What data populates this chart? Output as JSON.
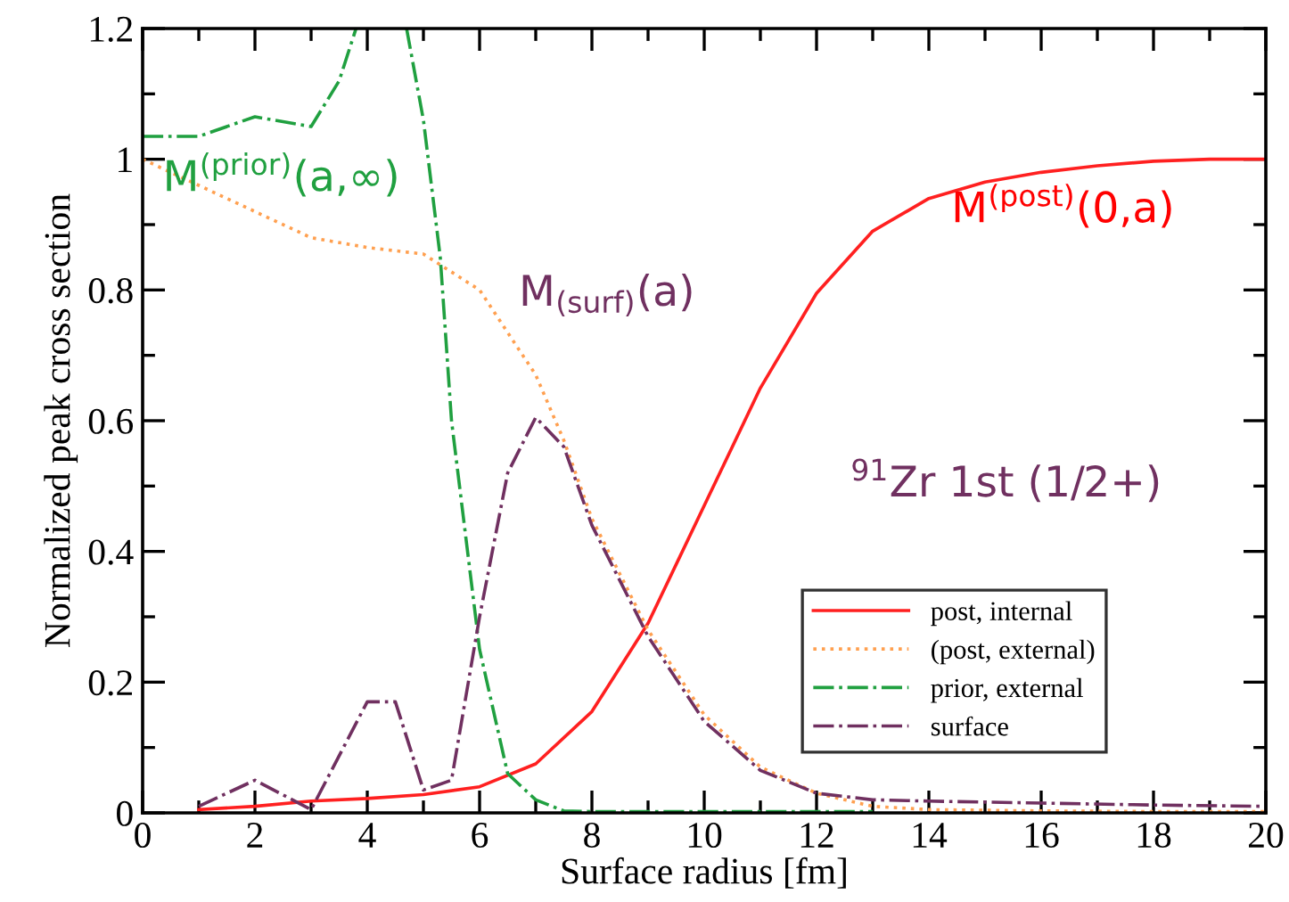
{
  "chart_data": {
    "type": "line",
    "xlabel": "Surface radius [fm]",
    "ylabel": "Normalized peak cross section",
    "xlim": [
      0,
      20
    ],
    "ylim": [
      0,
      1.2
    ],
    "xticks": [
      0,
      2,
      4,
      6,
      8,
      10,
      12,
      14,
      16,
      18,
      20
    ],
    "yticks": [
      0,
      0.2,
      0.4,
      0.6,
      0.8,
      1,
      1.2
    ],
    "grid": false,
    "legend": "bottom right",
    "marker": "none",
    "series": [
      {
        "name": "post, internal",
        "color": "#ff2020",
        "line_style": "solid",
        "x": [
          1,
          2,
          3,
          4,
          5,
          6,
          7,
          8,
          9,
          10,
          11,
          12,
          13,
          14,
          15,
          16,
          17,
          18,
          19,
          20
        ],
        "values": [
          0.005,
          0.01,
          0.018,
          0.022,
          0.028,
          0.04,
          0.075,
          0.155,
          0.29,
          0.47,
          0.65,
          0.795,
          0.89,
          0.94,
          0.965,
          0.98,
          0.99,
          0.997,
          1.0,
          1.0
        ]
      },
      {
        "name": "(post, external)",
        "color": "#ffa050",
        "line_style": "dotted",
        "x": [
          0,
          1,
          2,
          3,
          4,
          5,
          6,
          7,
          7.5,
          8,
          9,
          10,
          11,
          12,
          13,
          14,
          16,
          18,
          20
        ],
        "values": [
          1.0,
          0.96,
          0.92,
          0.88,
          0.865,
          0.855,
          0.8,
          0.67,
          0.57,
          0.45,
          0.28,
          0.15,
          0.07,
          0.03,
          0.01,
          0.005,
          0.003,
          0.002,
          0.002
        ]
      },
      {
        "name": "prior, external",
        "color": "#20a040",
        "line_style": "dashdot",
        "x": [
          0,
          1,
          2,
          3,
          3.5,
          3.8,
          4.2,
          4.7,
          5,
          5.3,
          5.5,
          6,
          6.5,
          7,
          7.5,
          8,
          10,
          12,
          13
        ],
        "values": [
          1.035,
          1.035,
          1.065,
          1.05,
          1.12,
          1.2,
          null,
          1.2,
          1.06,
          0.85,
          0.6,
          0.25,
          0.06,
          0.02,
          0.003,
          0.002,
          0.002,
          0.002,
          0.002
        ]
      },
      {
        "name": "surface",
        "color": "#703060",
        "line_style": "dashdot",
        "x": [
          1,
          2,
          3,
          4,
          4.5,
          5,
          5.5,
          6,
          6.5,
          7,
          7.5,
          8,
          9,
          10,
          11,
          12,
          13,
          14,
          16,
          18,
          20
        ],
        "values": [
          0.01,
          0.05,
          0.005,
          0.17,
          0.17,
          0.035,
          0.05,
          0.3,
          0.52,
          0.605,
          0.56,
          0.44,
          0.27,
          0.14,
          0.065,
          0.03,
          0.02,
          0.018,
          0.015,
          0.012,
          0.01
        ]
      }
    ],
    "annotations": [
      "M$^{(prior)}$(a,∞)",
      "M$_{(surf)}$(a)",
      "M$^{(post)}$(0,a)",
      "$^{91}$Zr 1st (1/2+)"
    ]
  }
}
